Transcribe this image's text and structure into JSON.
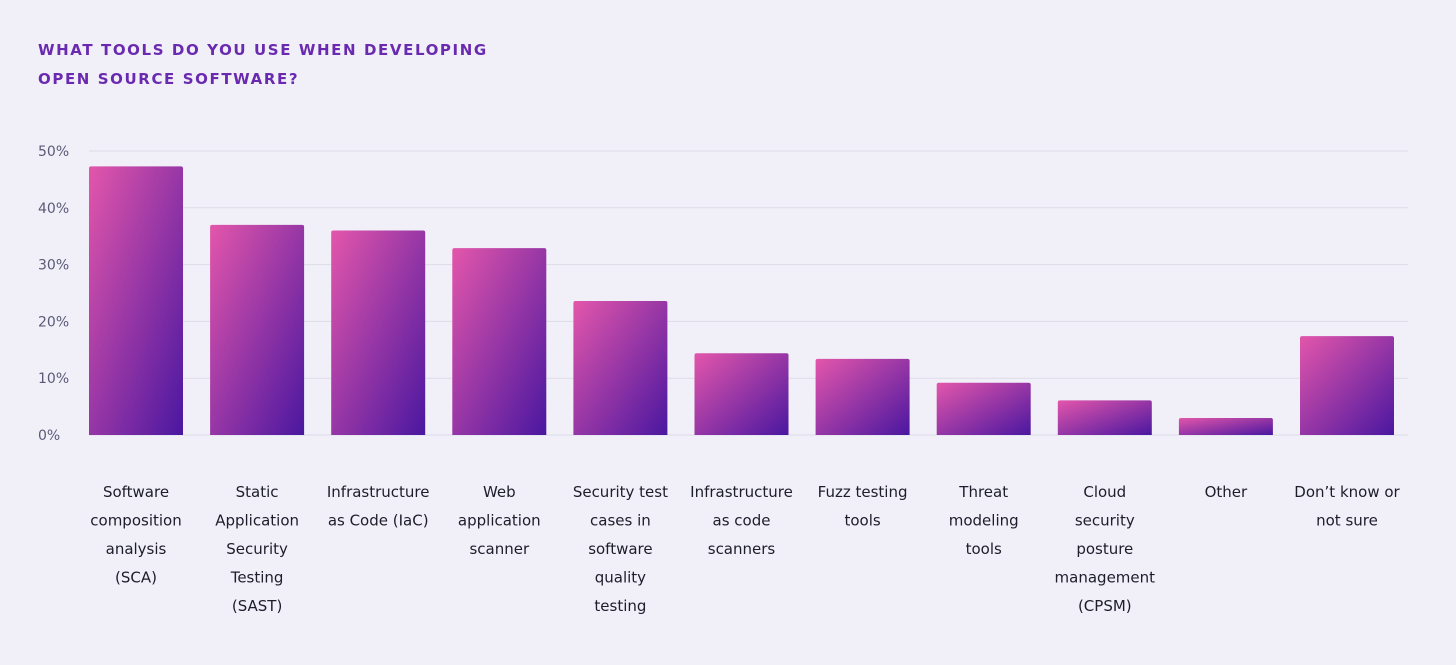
{
  "chart_data": {
    "type": "bar",
    "title_lines": [
      "WHAT TOOLS DO YOU USE WHEN DEVELOPING",
      "OPEN SOURCE SOFTWARE?"
    ],
    "xlabel": "",
    "ylabel": "",
    "ylim": [
      0,
      50
    ],
    "y_ticks": [
      {
        "value": 0,
        "label": "0%"
      },
      {
        "value": 10,
        "label": "10%"
      },
      {
        "value": 20,
        "label": "20%"
      },
      {
        "value": 30,
        "label": "30%"
      },
      {
        "value": 40,
        "label": "40%"
      },
      {
        "value": 50,
        "label": "50%"
      }
    ],
    "grid": true,
    "legend": "none",
    "categories": [
      [
        "Software",
        "composition",
        "analysis",
        "(SCA)"
      ],
      [
        "Static",
        "Application",
        "Security",
        "Testing",
        "(SAST)"
      ],
      [
        "Infrastructure",
        "as Code (IaC)"
      ],
      [
        "Web",
        "application",
        "scanner"
      ],
      [
        "Security test",
        "cases in",
        "software",
        "quality",
        "testing"
      ],
      [
        "Infrastructure",
        "as code",
        "scanners"
      ],
      [
        "Fuzz testing",
        "tools"
      ],
      [
        "Threat",
        "modeling",
        "tools"
      ],
      [
        "Cloud",
        "security",
        "posture",
        "management",
        "(CPSM)"
      ],
      [
        "Other"
      ],
      [
        "Don’t know or",
        "not sure"
      ]
    ],
    "values": [
      47.3,
      37.0,
      36.0,
      32.9,
      23.6,
      14.4,
      13.4,
      9.2,
      6.1,
      3.0,
      17.4
    ],
    "colors": {
      "bar_top": "#e356ab",
      "bar_bottom": "#4a17a0",
      "title": "#6a2ab0",
      "grid": "#dcdbe8",
      "background": "#f1f0f8"
    }
  }
}
